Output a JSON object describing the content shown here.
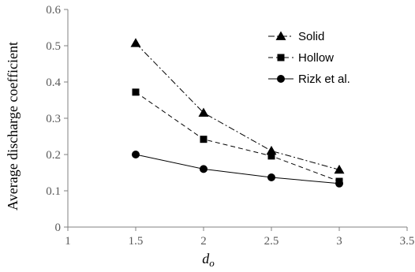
{
  "chart_data": {
    "type": "line",
    "title": "",
    "xlabel_main": "d",
    "xlabel_sub": "o",
    "ylabel": "Average discharge coefficient",
    "xlim": [
      1,
      3.5
    ],
    "ylim": [
      0,
      0.6
    ],
    "x_ticks": [
      "1",
      "1.5",
      "2",
      "2.5",
      "3",
      "3.5"
    ],
    "y_ticks": [
      "0",
      "0.1",
      "0.2",
      "0.3",
      "0.4",
      "0.5",
      "0.6"
    ],
    "grid": false,
    "legend_position": "top-right",
    "series": [
      {
        "name": "Solid",
        "marker": "triangle",
        "line_style": "dash-dot",
        "x": [
          1.5,
          2,
          2.5,
          3
        ],
        "y": [
          0.507,
          0.315,
          0.21,
          0.158
        ]
      },
      {
        "name": "Hollow",
        "marker": "square",
        "line_style": "dashed",
        "x": [
          1.5,
          2,
          2.5,
          3
        ],
        "y": [
          0.372,
          0.242,
          0.196,
          0.126
        ]
      },
      {
        "name": "Rizk et al.",
        "marker": "circle",
        "line_style": "solid",
        "x": [
          1.5,
          2,
          2.5,
          3
        ],
        "y": [
          0.2,
          0.16,
          0.137,
          0.12
        ]
      }
    ]
  }
}
